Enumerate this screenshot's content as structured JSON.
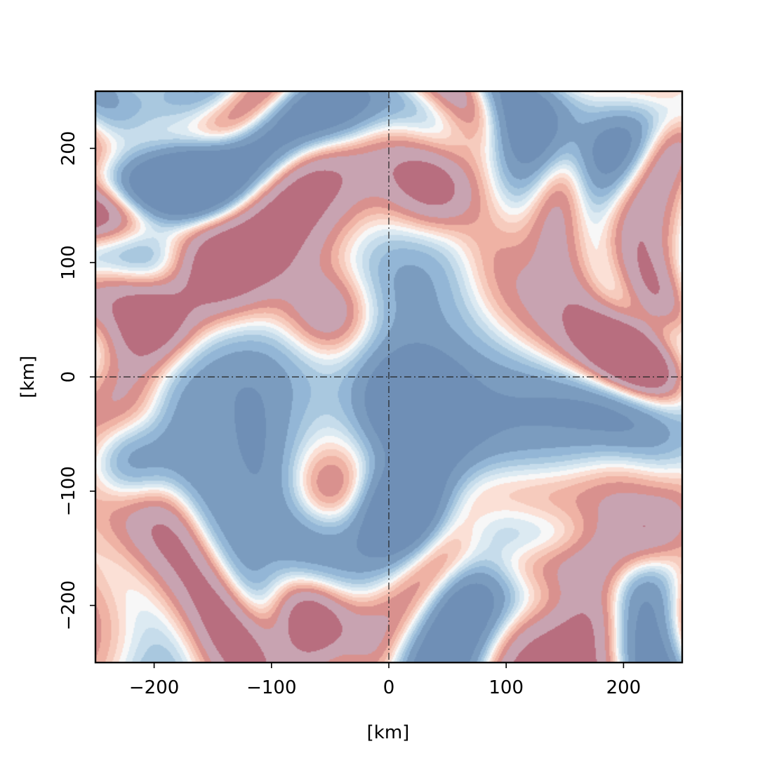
{
  "chart_data": {
    "type": "heatmap",
    "title": "",
    "xlabel": "[km]",
    "ylabel": "[km]",
    "xlim": [
      -250,
      250
    ],
    "ylim": [
      -250,
      250
    ],
    "xticks": [
      -200,
      -100,
      0,
      100,
      200
    ],
    "yticks": [
      -200,
      -100,
      0,
      100,
      200
    ],
    "xtick_labels": [
      "−200",
      "−100",
      "0",
      "100",
      "200"
    ],
    "ytick_labels": [
      "−200",
      "−100",
      "0",
      "100",
      "200"
    ],
    "reference_lines": [
      {
        "orientation": "vertical",
        "x": 0,
        "style": "dash-dot"
      },
      {
        "orientation": "horizontal",
        "y": 0,
        "style": "dash-dot"
      }
    ],
    "colormap": "RdBu_r",
    "contour_levels": 12,
    "colors": {
      "strong_negative": "#7b9cbf",
      "negative": "#a9c8df",
      "weak_negative": "#dceaf2",
      "neutral": "#f7f7f7",
      "weak_positive": "#fbe0d6",
      "positive": "#efb2a4",
      "strong_positive": "#c8a3b1"
    },
    "features": [
      {
        "kind": "cyclone",
        "x": -170,
        "y": 180,
        "amplitude": -1.0
      },
      {
        "kind": "cyclone",
        "x": -220,
        "y": -75,
        "amplitude": -1.0
      },
      {
        "kind": "cyclone",
        "x": 18,
        "y": -22,
        "amplitude": -0.95
      },
      {
        "kind": "cyclone",
        "x": 180,
        "y": 205,
        "amplitude": -0.7
      },
      {
        "kind": "cyclone",
        "x": 10,
        "y": -120,
        "amplitude": -0.75
      },
      {
        "kind": "cyclone",
        "x": -45,
        "y": 230,
        "amplitude": -0.6
      },
      {
        "kind": "anticyclone",
        "x": 225,
        "y": 45,
        "amplitude": 0.9
      },
      {
        "kind": "anticyclone",
        "x": -50,
        "y": 55,
        "amplitude": 0.8
      },
      {
        "kind": "anticyclone",
        "x": -70,
        "y": -210,
        "amplitude": 0.85
      },
      {
        "kind": "anticyclone",
        "x": -210,
        "y": 45,
        "amplitude": 0.75
      },
      {
        "kind": "anticyclone",
        "x": 40,
        "y": 165,
        "amplitude": 0.7
      },
      {
        "kind": "anticyclone",
        "x": 185,
        "y": -200,
        "amplitude": 0.7
      },
      {
        "kind": "anticyclone",
        "x": -160,
        "y": 100,
        "amplitude": 0.55
      },
      {
        "kind": "anticyclone",
        "x": -50,
        "y": -100,
        "amplitude": 0.6
      },
      {
        "kind": "anticyclone",
        "x": 195,
        "y": -135,
        "amplitude": 0.5
      }
    ]
  }
}
